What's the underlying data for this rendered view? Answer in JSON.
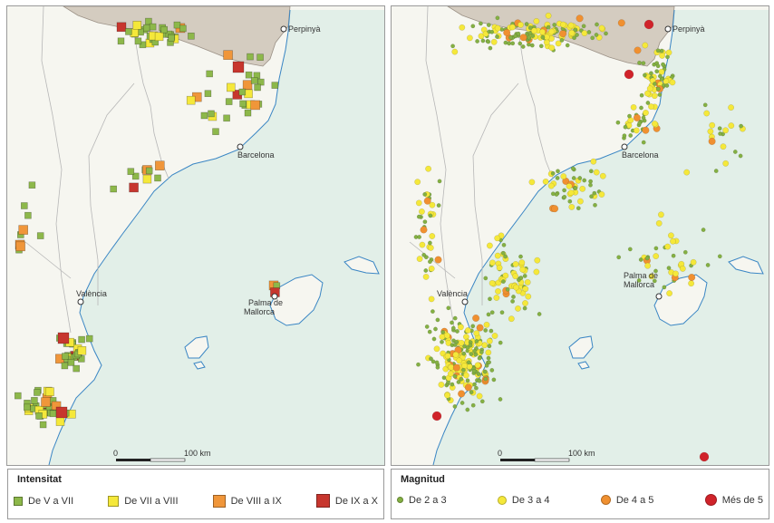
{
  "colors": {
    "sea": "#e2efe8",
    "land": "#f6f6f0",
    "france": "#d4ccc0",
    "coast": "#3a86c4",
    "border": "#b7b7b7",
    "intensity": [
      "#8db84a",
      "#f5e83a",
      "#f0963a",
      "#c7362e"
    ],
    "magnitude": [
      "#84b043",
      "#f5e83a",
      "#f09030",
      "#d0232a"
    ]
  },
  "cities": {
    "perpinya": "Perpinyà",
    "barcelona": "Barcelona",
    "valencia": "València",
    "palma_line1": "Palma de",
    "palma_line2": "Mallorca"
  },
  "scale": {
    "zero": "0",
    "end": "100 km"
  },
  "legend_left": {
    "title": "Intensitat",
    "items": [
      {
        "label": "De V a VII",
        "color": "#8db84a"
      },
      {
        "label": "De VII a VIII",
        "color": "#f5e83a"
      },
      {
        "label": "De VIII a IX",
        "color": "#f0963a"
      },
      {
        "label": "De IX a X",
        "color": "#c7362e"
      }
    ]
  },
  "legend_right": {
    "title": "Magnitud",
    "items": [
      {
        "label": "De 2 a 3",
        "color": "#84b043"
      },
      {
        "label": "De 3 a 4",
        "color": "#f5e83a"
      },
      {
        "label": "De 4 a 5",
        "color": "#f09030"
      },
      {
        "label": "Més de 5",
        "color": "#d0232a"
      }
    ]
  }
}
